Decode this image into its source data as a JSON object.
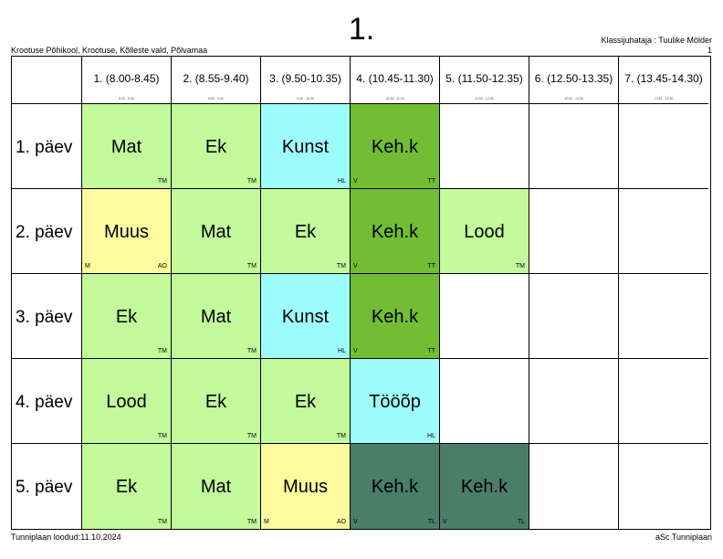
{
  "header": {
    "title": "1.",
    "school": "Krootuse Põhikool, Krootuse, Kõlleste vald, Põlvamaa",
    "class_teacher": "Klassijuhataja : Tuulike Mölder",
    "page_number": "1"
  },
  "footer": {
    "created": "Tunniplaan loodud:11.10.2024",
    "software": "aSc Tunniplaan"
  },
  "colors": {
    "light_green": "#c2fa9c",
    "cyan": "#9dfcfc",
    "yellow": "#fffb9f",
    "dark_green": "#72bd34",
    "teal": "#4a7e6b"
  },
  "periods": [
    {
      "label": "1. (8.00-8.45)",
      "time": "8:00 - 8:45"
    },
    {
      "label": "2. (8.55-9.40)",
      "time": "8:55 - 9:40"
    },
    {
      "label": "3. (9.50-10.35)",
      "time": "9:50 - 10:35"
    },
    {
      "label": "4. (10.45-11.30)",
      "time": "10:45 - 11:30"
    },
    {
      "label": "5. (11.50-12.35)",
      "time": "11:50 - 12:35"
    },
    {
      "label": "6. (12.50-13.35)",
      "time": "12:50 - 13:35"
    },
    {
      "label": "7. (13.45-14.30)",
      "time": "13:45 - 14:30"
    }
  ],
  "days": [
    {
      "label": "1. päev",
      "lessons": [
        {
          "subject": "Mat",
          "teacher": "TM",
          "room": "",
          "color": "#c2fa9c"
        },
        {
          "subject": "Ek",
          "teacher": "TM",
          "room": "",
          "color": "#c2fa9c"
        },
        {
          "subject": "Kunst",
          "teacher": "HL",
          "room": "",
          "color": "#9dfcfc"
        },
        {
          "subject": "Keh.k",
          "teacher": "TT",
          "room": "V",
          "color": "#72bd34"
        },
        null,
        null,
        null
      ]
    },
    {
      "label": "2. päev",
      "lessons": [
        {
          "subject": "Muus",
          "teacher": "AO",
          "room": "M",
          "color": "#fffb9f"
        },
        {
          "subject": "Mat",
          "teacher": "TM",
          "room": "",
          "color": "#c2fa9c"
        },
        {
          "subject": "Ek",
          "teacher": "TM",
          "room": "",
          "color": "#c2fa9c"
        },
        {
          "subject": "Keh.k",
          "teacher": "TT",
          "room": "V",
          "color": "#72bd34"
        },
        {
          "subject": "Lood",
          "teacher": "TM",
          "room": "",
          "color": "#c2fa9c"
        },
        null,
        null
      ]
    },
    {
      "label": "3. päev",
      "lessons": [
        {
          "subject": "Ek",
          "teacher": "TM",
          "room": "",
          "color": "#c2fa9c"
        },
        {
          "subject": "Mat",
          "teacher": "TM",
          "room": "",
          "color": "#c2fa9c"
        },
        {
          "subject": "Kunst",
          "teacher": "HL",
          "room": "",
          "color": "#9dfcfc"
        },
        {
          "subject": "Keh.k",
          "teacher": "TT",
          "room": "V",
          "color": "#72bd34"
        },
        null,
        null,
        null
      ]
    },
    {
      "label": "4. päev",
      "lessons": [
        {
          "subject": "Lood",
          "teacher": "TM",
          "room": "",
          "color": "#c2fa9c"
        },
        {
          "subject": "Ek",
          "teacher": "TM",
          "room": "",
          "color": "#c2fa9c"
        },
        {
          "subject": "Ek",
          "teacher": "TM",
          "room": "",
          "color": "#c2fa9c"
        },
        {
          "subject": "Tööõp",
          "teacher": "HL",
          "room": "",
          "color": "#9dfcfc"
        },
        null,
        null,
        null
      ]
    },
    {
      "label": "5. päev",
      "lessons": [
        {
          "subject": "Ek",
          "teacher": "TM",
          "room": "",
          "color": "#c2fa9c"
        },
        {
          "subject": "Mat",
          "teacher": "TM",
          "room": "",
          "color": "#c2fa9c"
        },
        {
          "subject": "Muus",
          "teacher": "AO",
          "room": "M",
          "color": "#fffb9f"
        },
        {
          "subject": "Keh.k",
          "teacher": "TL",
          "room": "V",
          "color": "#4a7e6b"
        },
        {
          "subject": "Keh.k",
          "teacher": "TL",
          "room": "V",
          "color": "#4a7e6b"
        },
        null,
        null
      ]
    }
  ]
}
